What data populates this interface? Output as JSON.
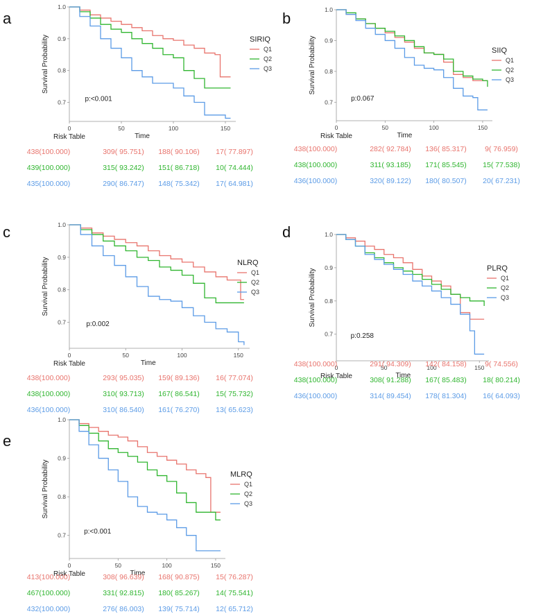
{
  "colors": {
    "Q1": "#e8736c",
    "Q2": "#2fb52f",
    "Q3": "#5b9be6"
  },
  "chart_data": [
    {
      "id": "a",
      "type": "line",
      "letter": "a",
      "title": "",
      "xlabel": "Time",
      "ylabel": "Survival Probability",
      "xlim": [
        0,
        160
      ],
      "ylim": [
        0.64,
        1.0
      ],
      "xticks": [
        "0",
        "50",
        "100",
        "150"
      ],
      "yticks": [
        "1.0",
        "0.9",
        "0.8",
        "0.7"
      ],
      "legend_title": "SIRIQ",
      "pvalue": "p:<0.001",
      "risk_label": "Risk Table",
      "series": [
        {
          "name": "Q1",
          "x": [
            0,
            10,
            20,
            30,
            40,
            50,
            60,
            70,
            80,
            90,
            100,
            110,
            120,
            130,
            140,
            145,
            150,
            155
          ],
          "y": [
            1.0,
            0.99,
            0.975,
            0.965,
            0.955,
            0.945,
            0.935,
            0.925,
            0.91,
            0.9,
            0.895,
            0.88,
            0.87,
            0.855,
            0.85,
            0.78,
            0.78,
            0.78
          ]
        },
        {
          "name": "Q2",
          "x": [
            0,
            10,
            20,
            30,
            40,
            50,
            60,
            70,
            80,
            90,
            100,
            110,
            120,
            130,
            140,
            155
          ],
          "y": [
            1.0,
            0.985,
            0.965,
            0.945,
            0.93,
            0.92,
            0.9,
            0.885,
            0.87,
            0.85,
            0.84,
            0.8,
            0.775,
            0.745,
            0.745,
            0.745
          ]
        },
        {
          "name": "Q3",
          "x": [
            0,
            10,
            20,
            30,
            40,
            50,
            60,
            70,
            80,
            90,
            100,
            110,
            120,
            130,
            140,
            150,
            155
          ],
          "y": [
            1.0,
            0.97,
            0.94,
            0.9,
            0.87,
            0.84,
            0.8,
            0.78,
            0.76,
            0.76,
            0.745,
            0.72,
            0.7,
            0.66,
            0.66,
            0.65,
            0.65
          ]
        }
      ],
      "risk_table": [
        [
          "438(100.000)",
          "309( 95.751)",
          "188( 90.106)",
          "17( 77.897)"
        ],
        [
          "439(100.000)",
          "315( 93.242)",
          "151( 86.718)",
          "10( 74.444)"
        ],
        [
          "435(100.000)",
          "290( 86.747)",
          "148( 75.342)",
          "17( 64.981)"
        ]
      ]
    },
    {
      "id": "b",
      "type": "line",
      "letter": "b",
      "title": "",
      "xlabel": "Time",
      "ylabel": "Survival Probability",
      "xlim": [
        0,
        160
      ],
      "ylim": [
        0.64,
        1.0
      ],
      "xticks": [
        "0",
        "50",
        "100",
        "150"
      ],
      "yticks": [
        "1.0",
        "0.9",
        "0.8",
        "0.7"
      ],
      "legend_title": "SIIQ",
      "pvalue": "p:0.067",
      "risk_label": "Risk Table",
      "series": [
        {
          "name": "Q1",
          "x": [
            0,
            10,
            20,
            30,
            40,
            50,
            60,
            70,
            80,
            90,
            100,
            110,
            120,
            130,
            140,
            150,
            155
          ],
          "y": [
            1.0,
            0.985,
            0.97,
            0.955,
            0.94,
            0.925,
            0.91,
            0.895,
            0.875,
            0.86,
            0.855,
            0.83,
            0.79,
            0.78,
            0.77,
            0.77,
            0.77
          ]
        },
        {
          "name": "Q2",
          "x": [
            0,
            10,
            20,
            30,
            40,
            50,
            60,
            70,
            80,
            90,
            100,
            110,
            120,
            130,
            140,
            150,
            155
          ],
          "y": [
            1.0,
            0.99,
            0.97,
            0.955,
            0.94,
            0.93,
            0.915,
            0.9,
            0.88,
            0.86,
            0.855,
            0.84,
            0.8,
            0.785,
            0.775,
            0.77,
            0.75
          ]
        },
        {
          "name": "Q3",
          "x": [
            0,
            10,
            20,
            30,
            40,
            50,
            60,
            70,
            80,
            90,
            100,
            110,
            120,
            130,
            140,
            145,
            150,
            155
          ],
          "y": [
            1.0,
            0.985,
            0.965,
            0.94,
            0.92,
            0.9,
            0.875,
            0.845,
            0.82,
            0.81,
            0.805,
            0.78,
            0.745,
            0.72,
            0.715,
            0.675,
            0.675,
            0.675
          ]
        }
      ],
      "risk_table": [
        [
          "438(100.000)",
          "282( 92.784)",
          "136( 85.317)",
          "9( 76.959)"
        ],
        [
          "438(100.000)",
          "311( 93.185)",
          "171( 85.545)",
          "15( 77.538)"
        ],
        [
          "436(100.000)",
          "320( 89.122)",
          "180( 80.507)",
          "20( 67.231)"
        ]
      ]
    },
    {
      "id": "c",
      "type": "line",
      "letter": "c",
      "title": "",
      "xlabel": "Time",
      "ylabel": "Survival Probability",
      "xlim": [
        0,
        160
      ],
      "ylim": [
        0.62,
        1.0
      ],
      "xticks": [
        "0",
        "50",
        "100",
        "150"
      ],
      "yticks": [
        "1.0",
        "0.9",
        "0.8",
        "0.7"
      ],
      "legend_title": "NLRQ",
      "pvalue": "p:0.002",
      "risk_label": "Risk Table",
      "series": [
        {
          "name": "Q1",
          "x": [
            0,
            10,
            20,
            30,
            40,
            50,
            60,
            70,
            80,
            90,
            100,
            110,
            120,
            130,
            140,
            150,
            152,
            155
          ],
          "y": [
            1.0,
            0.99,
            0.975,
            0.965,
            0.955,
            0.945,
            0.935,
            0.92,
            0.905,
            0.895,
            0.885,
            0.87,
            0.855,
            0.84,
            0.83,
            0.83,
            0.77,
            0.77
          ]
        },
        {
          "name": "Q2",
          "x": [
            0,
            10,
            20,
            30,
            40,
            50,
            60,
            70,
            80,
            90,
            100,
            110,
            120,
            130,
            140,
            155
          ],
          "y": [
            1.0,
            0.985,
            0.97,
            0.95,
            0.935,
            0.92,
            0.9,
            0.89,
            0.87,
            0.86,
            0.845,
            0.82,
            0.775,
            0.76,
            0.76,
            0.76
          ]
        },
        {
          "name": "Q3",
          "x": [
            0,
            10,
            20,
            30,
            40,
            50,
            60,
            70,
            80,
            90,
            100,
            110,
            120,
            130,
            140,
            150,
            155
          ],
          "y": [
            1.0,
            0.97,
            0.935,
            0.905,
            0.875,
            0.84,
            0.81,
            0.78,
            0.77,
            0.765,
            0.745,
            0.72,
            0.7,
            0.68,
            0.67,
            0.64,
            0.63
          ]
        }
      ],
      "risk_table": [
        [
          "438(100.000)",
          "293( 95.035)",
          "159( 89.136)",
          "16( 77.074)"
        ],
        [
          "438(100.000)",
          "310( 93.713)",
          "167( 86.541)",
          "15( 75.732)"
        ],
        [
          "436(100.000)",
          "310( 86.540)",
          "161( 76.270)",
          "13( 65.623)"
        ]
      ]
    },
    {
      "id": "d",
      "type": "line",
      "letter": "d",
      "title": "",
      "xlabel": "Time",
      "ylabel": "Survival Probability",
      "xlim": [
        0,
        160
      ],
      "ylim": [
        0.62,
        1.0
      ],
      "xticks": [
        "0",
        "50",
        "100",
        "150"
      ],
      "yticks": [
        "1.0",
        "0.9",
        "0.8",
        "0.7"
      ],
      "legend_title": "PLRQ",
      "pvalue": "p:0.258",
      "risk_label": "Risk Table",
      "series": [
        {
          "name": "Q1",
          "x": [
            0,
            10,
            20,
            30,
            40,
            50,
            60,
            70,
            80,
            90,
            100,
            110,
            120,
            130,
            140,
            150,
            155
          ],
          "y": [
            1.0,
            0.99,
            0.98,
            0.965,
            0.955,
            0.94,
            0.93,
            0.915,
            0.895,
            0.875,
            0.86,
            0.845,
            0.82,
            0.765,
            0.745,
            0.745,
            0.745
          ]
        },
        {
          "name": "Q2",
          "x": [
            0,
            10,
            20,
            30,
            40,
            50,
            60,
            70,
            80,
            90,
            100,
            110,
            120,
            130,
            140,
            150,
            155
          ],
          "y": [
            1.0,
            0.985,
            0.965,
            0.945,
            0.93,
            0.915,
            0.9,
            0.89,
            0.88,
            0.865,
            0.85,
            0.835,
            0.82,
            0.81,
            0.8,
            0.8,
            0.785
          ]
        },
        {
          "name": "Q3",
          "x": [
            0,
            10,
            20,
            30,
            40,
            50,
            60,
            70,
            80,
            90,
            100,
            110,
            120,
            130,
            140,
            145,
            150,
            155
          ],
          "y": [
            1.0,
            0.985,
            0.965,
            0.94,
            0.925,
            0.91,
            0.895,
            0.88,
            0.86,
            0.845,
            0.83,
            0.81,
            0.79,
            0.76,
            0.71,
            0.64,
            0.64,
            0.64
          ]
        }
      ],
      "risk_table": [
        [
          "438(100.000)",
          "291( 94.309)",
          "142( 84.158)",
          "9( 74.556)"
        ],
        [
          "438(100.000)",
          "308( 91.288)",
          "167( 85.483)",
          "18( 80.214)"
        ],
        [
          "436(100.000)",
          "314( 89.454)",
          "178( 81.304)",
          "16( 64.093)"
        ]
      ]
    },
    {
      "id": "e",
      "type": "line",
      "letter": "e",
      "title": "",
      "xlabel": "Time",
      "ylabel": "Survival Probability",
      "xlim": [
        0,
        160
      ],
      "ylim": [
        0.64,
        1.0
      ],
      "xticks": [
        "0",
        "50",
        "100",
        "150"
      ],
      "yticks": [
        "1.0",
        "0.9",
        "0.8",
        "0.7"
      ],
      "legend_title": "MLRQ",
      "pvalue": "p:<0.001",
      "risk_label": "Risk Table",
      "series": [
        {
          "name": "Q1",
          "x": [
            0,
            10,
            20,
            30,
            40,
            50,
            60,
            70,
            80,
            90,
            100,
            110,
            120,
            130,
            140,
            145,
            150,
            155
          ],
          "y": [
            1.0,
            0.99,
            0.98,
            0.97,
            0.96,
            0.955,
            0.945,
            0.93,
            0.915,
            0.905,
            0.895,
            0.885,
            0.87,
            0.86,
            0.85,
            0.76,
            0.76,
            0.76
          ]
        },
        {
          "name": "Q2",
          "x": [
            0,
            10,
            20,
            30,
            40,
            50,
            60,
            70,
            80,
            90,
            100,
            110,
            120,
            130,
            140,
            150,
            155
          ],
          "y": [
            1.0,
            0.985,
            0.965,
            0.945,
            0.925,
            0.915,
            0.905,
            0.89,
            0.87,
            0.855,
            0.84,
            0.81,
            0.785,
            0.76,
            0.76,
            0.74,
            0.74
          ]
        },
        {
          "name": "Q3",
          "x": [
            0,
            10,
            20,
            30,
            40,
            50,
            60,
            70,
            80,
            90,
            100,
            110,
            120,
            130,
            140,
            150,
            155
          ],
          "y": [
            1.0,
            0.97,
            0.935,
            0.9,
            0.87,
            0.84,
            0.8,
            0.775,
            0.76,
            0.755,
            0.74,
            0.72,
            0.7,
            0.66,
            0.66,
            0.66,
            0.66
          ]
        }
      ],
      "risk_table": [
        [
          "413(100.000)",
          "308( 96.639)",
          "168( 90.875)",
          "15( 76.287)"
        ],
        [
          "467(100.000)",
          "331( 92.815)",
          "180( 85.267)",
          "14( 75.541)"
        ],
        [
          "432(100.000)",
          "276( 86.003)",
          "139( 75.714)",
          "12( 65.712)"
        ]
      ]
    }
  ]
}
